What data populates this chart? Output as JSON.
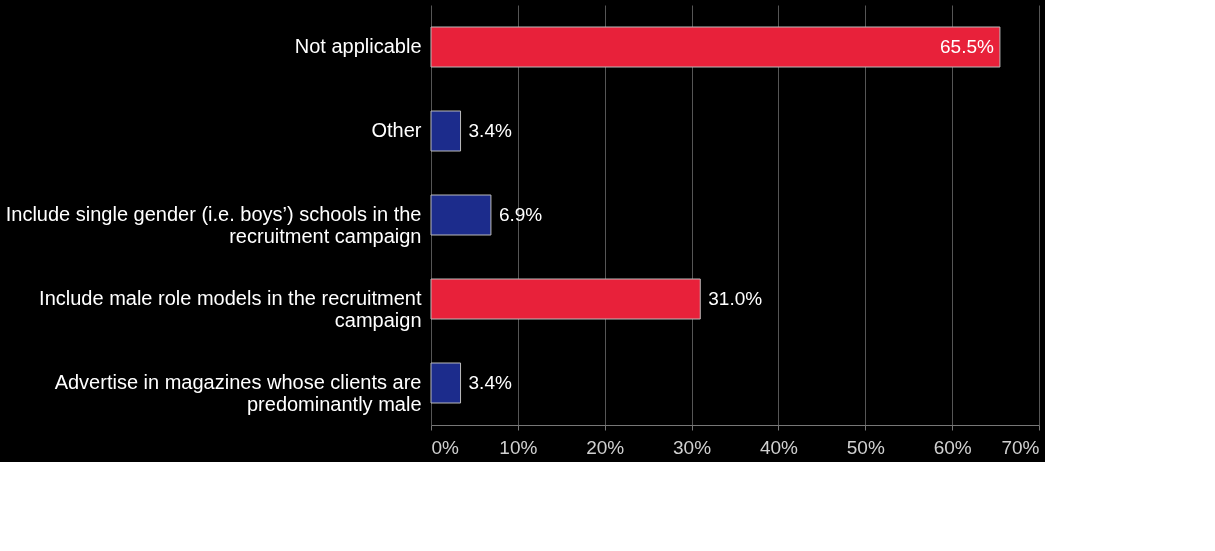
{
  "chart_data": {
    "type": "bar",
    "orientation": "horizontal",
    "categories": [
      "Not applicable",
      "Other",
      "Include single gender (i.e. boys’) schools in the recruitment campaign",
      "Include male role models in the recruitment campaign",
      "Advertise in magazines whose clients are predominantly male"
    ],
    "values": [
      65.5,
      3.4,
      6.9,
      31.0,
      3.4
    ],
    "colors": [
      "#e8213a",
      "#1c2c8c",
      "#1c2c8c",
      "#e8213a",
      "#1c2c8c"
    ],
    "value_labels": [
      "65.5%",
      "3.4%",
      "6.9%",
      "31.0%",
      "3.4%"
    ],
    "xlim": [
      0,
      70
    ],
    "xticks": [
      {
        "value": 0,
        "label": "0%"
      },
      {
        "value": 10,
        "label": "10%"
      },
      {
        "value": 20,
        "label": "20%"
      },
      {
        "value": 30,
        "label": "30%"
      },
      {
        "value": 40,
        "label": "40%"
      },
      {
        "value": 50,
        "label": "50%"
      },
      {
        "value": 60,
        "label": "60%"
      },
      {
        "value": 70,
        "label": "70%"
      }
    ],
    "grid": "x"
  }
}
